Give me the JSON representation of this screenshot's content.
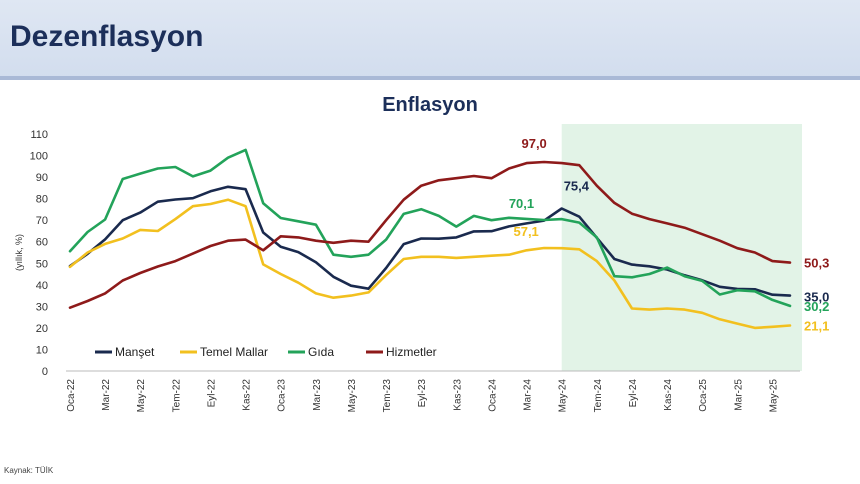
{
  "page": {
    "title": "Dezenflasyon",
    "source": "Kaynak: TÜİK"
  },
  "chart_data": {
    "type": "line",
    "title": "Enflasyon",
    "ylabel": "(yıllık, %)",
    "xlabel": "",
    "ylim": [
      0,
      110
    ],
    "yticks": [
      0,
      10,
      20,
      30,
      40,
      50,
      60,
      70,
      80,
      90,
      100,
      110
    ],
    "x": [
      "Oca-22",
      "Şub-22",
      "Mar-22",
      "Nis-22",
      "May-22",
      "Haz-22",
      "Tem-22",
      "Ağu-22",
      "Eyl-22",
      "Eki-22",
      "Kas-22",
      "Ara-22",
      "Oca-23",
      "Şub-23",
      "Mar-23",
      "Nis-23",
      "May-23",
      "Haz-23",
      "Tem-23",
      "Ağu-23",
      "Eyl-23",
      "Eki-23",
      "Kas-23",
      "Ara-23",
      "Oca-24",
      "Şub-24",
      "Mar-24",
      "Nis-24",
      "May-24",
      "Haz-24",
      "Tem-24",
      "Ağu-24",
      "Eyl-24",
      "Eki-24",
      "Kas-24",
      "Ara-24",
      "Oca-25",
      "Şub-25",
      "Mar-25",
      "Nis-25",
      "May-25",
      "Haz-25"
    ],
    "xtick_labels": [
      "Oca-22",
      "",
      "Mar-22",
      "",
      "May-22",
      "",
      "Tem-22",
      "",
      "Eyl-22",
      "",
      "Kas-22",
      "",
      "Oca-23",
      "",
      "Mar-23",
      "",
      "May-23",
      "",
      "Tem-23",
      "",
      "Eyl-23",
      "",
      "Kas-23",
      "",
      "Oca-24",
      "",
      "Mar-24",
      "",
      "May-24",
      "",
      "Tem-24",
      "",
      "Eyl-24",
      "",
      "Kas-24",
      "",
      "Oca-25",
      "",
      "Mar-25",
      "",
      "May-25",
      ""
    ],
    "shaded_region": {
      "from": "May-24",
      "to": "Haz-25",
      "color": "#e2f3e7"
    },
    "series": [
      {
        "name": "Manşet",
        "color": "#1a2a4e",
        "values": [
          48.7,
          54.4,
          61.1,
          70.0,
          73.5,
          78.6,
          79.6,
          80.2,
          83.4,
          85.5,
          84.4,
          64.3,
          57.7,
          55.2,
          50.5,
          43.7,
          39.6,
          38.2,
          47.8,
          58.9,
          61.5,
          61.4,
          62.0,
          64.8,
          64.9,
          67.1,
          68.5,
          69.8,
          75.4,
          71.6,
          61.8,
          52.0,
          49.4,
          48.6,
          47.1,
          44.4,
          42.1,
          39.1,
          38.1,
          37.9,
          35.4,
          35.0
        ],
        "end_label": "35,0",
        "peak_label": "75,4",
        "peak_index": 28
      },
      {
        "name": "Temel Mallar",
        "color": "#f2c01f",
        "values": [
          48.3,
          55.0,
          59.0,
          61.5,
          65.5,
          65.0,
          70.5,
          76.5,
          77.5,
          79.5,
          76.5,
          49.5,
          45.0,
          41.0,
          36.0,
          34.0,
          35.0,
          36.5,
          44.5,
          52.0,
          53.0,
          53.0,
          52.5,
          53.0,
          53.5,
          54.0,
          56.0,
          57.1,
          57.0,
          56.5,
          51.0,
          42.0,
          29.0,
          28.5,
          29.0,
          28.5,
          27.0,
          24.0,
          22.0,
          20.0,
          20.5,
          21.1
        ],
        "end_label": "21,1",
        "peak_label": "57,1",
        "peak_index": 27
      },
      {
        "name": "Gıda",
        "color": "#23a35a",
        "values": [
          55.6,
          64.5,
          70.3,
          89.1,
          91.6,
          94.0,
          94.7,
          90.3,
          93.0,
          99.0,
          102.6,
          77.9,
          71.0,
          69.5,
          67.9,
          54.0,
          53.0,
          54.0,
          61.0,
          72.9,
          75.1,
          72.0,
          67.0,
          72.0,
          70.0,
          71.1,
          70.6,
          70.1,
          70.5,
          68.9,
          62.0,
          44.0,
          43.5,
          45.0,
          48.0,
          44.0,
          41.8,
          35.5,
          37.5,
          37.0,
          33.0,
          30.2
        ],
        "end_label": "30,2",
        "peak_label": "70,1",
        "peak_index": 27
      },
      {
        "name": "Hizmetler",
        "color": "#8e1a1a",
        "values": [
          29.4,
          32.5,
          36.0,
          42.0,
          45.5,
          48.5,
          51.0,
          54.5,
          58.0,
          60.5,
          61.0,
          56.0,
          62.5,
          62.0,
          60.5,
          59.5,
          60.5,
          60.0,
          70.0,
          79.5,
          86.0,
          88.5,
          89.5,
          90.5,
          89.5,
          94.0,
          96.5,
          97.0,
          96.5,
          95.5,
          86.0,
          78.0,
          73.0,
          70.5,
          68.5,
          66.5,
          63.5,
          60.5,
          57.0,
          55.0,
          51.0,
          50.3
        ],
        "end_label": "50,3",
        "peak_label": "97,0",
        "peak_index": 27
      }
    ],
    "legend_position": "bottom-left",
    "grid": false
  }
}
